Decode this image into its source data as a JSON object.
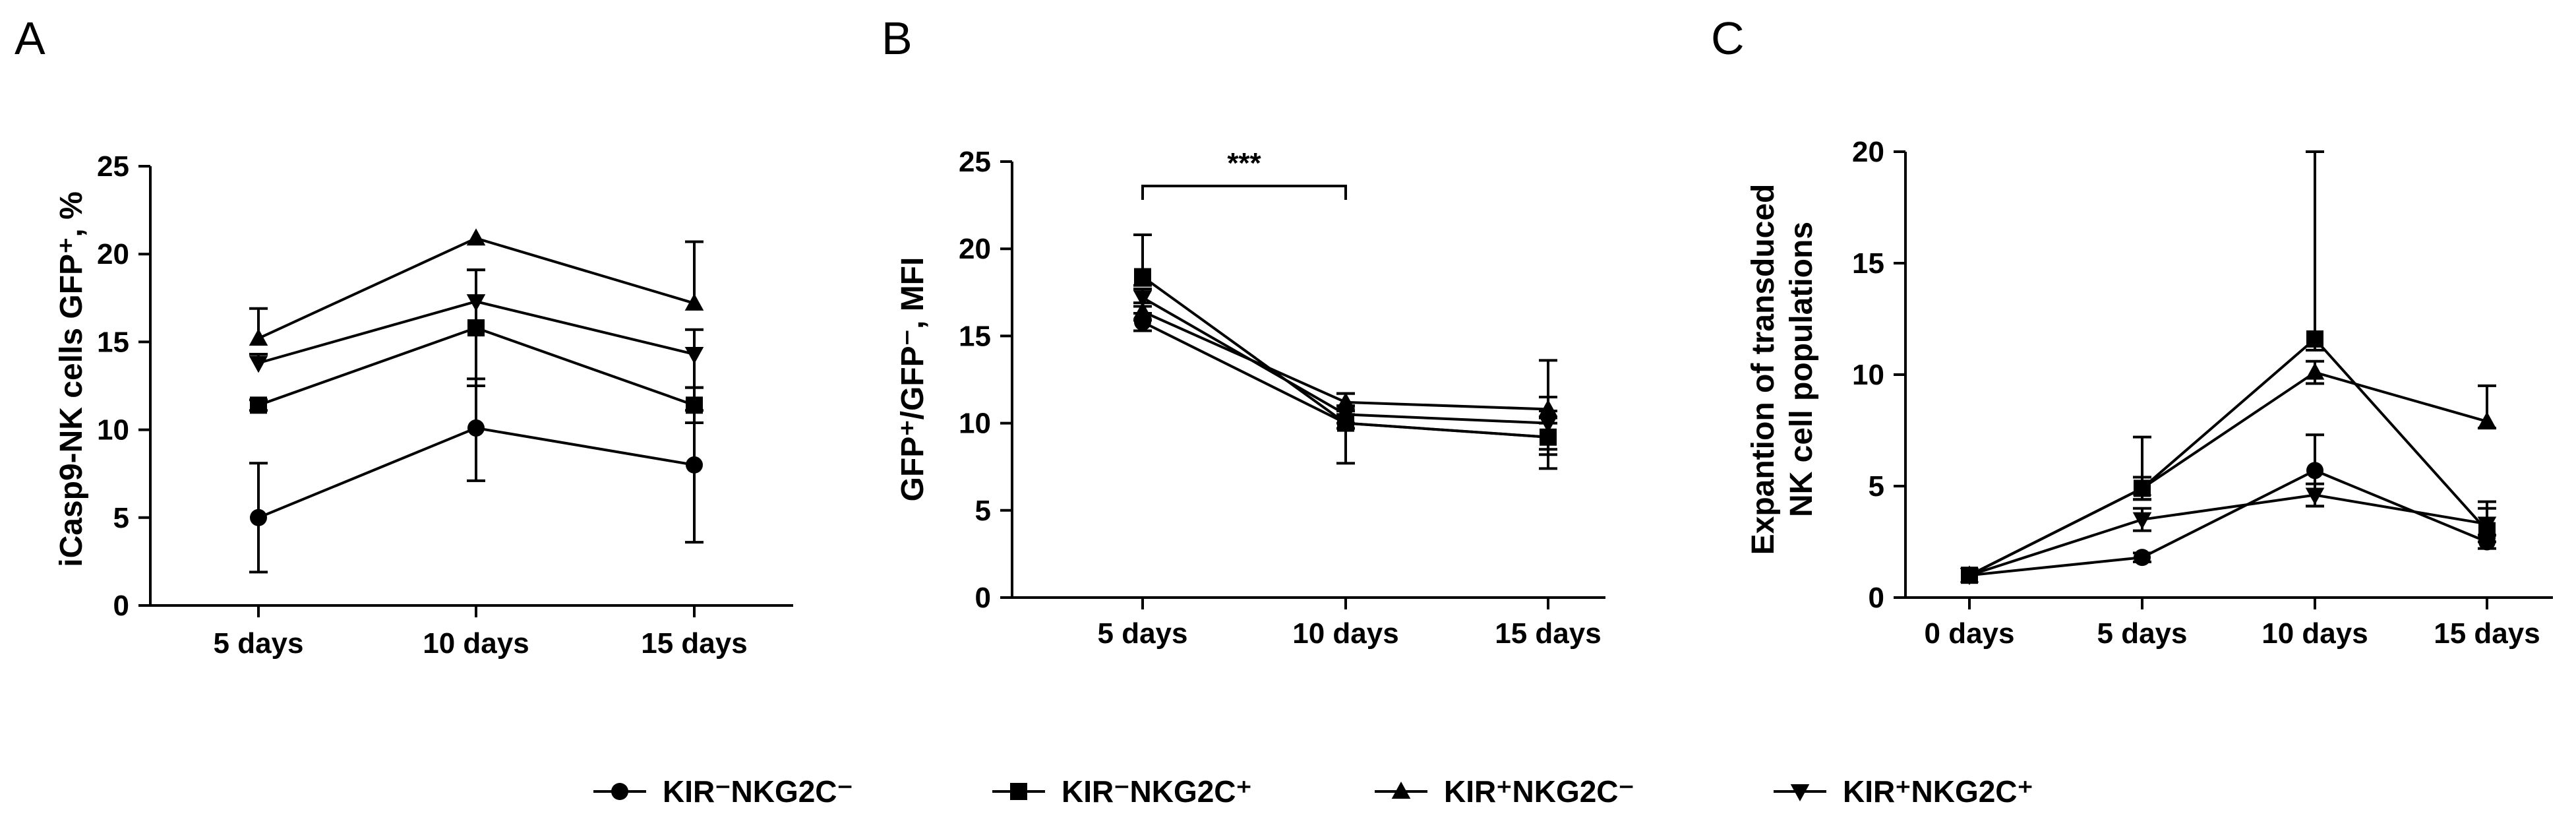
{
  "chart_data": [
    {
      "panel": "A",
      "type": "line",
      "ylabel": "iCasp9-NK cells GFP⁺, %",
      "xlabel": "",
      "categories": [
        "5 days",
        "10 days",
        "15 days"
      ],
      "ylim": [
        0,
        25
      ],
      "yticks": [
        0,
        5,
        10,
        15,
        20,
        25
      ],
      "series": [
        {
          "name": "KIR⁻NKG2C⁻",
          "marker": "circle",
          "values": [
            5.0,
            10.1,
            8.0
          ],
          "err_up": [
            3.1,
            2.8,
            4.4
          ],
          "err_down": [
            3.1,
            3.0,
            4.4
          ]
        },
        {
          "name": "KIR⁻NKG2C⁺",
          "marker": "square",
          "values": [
            11.4,
            15.8,
            11.4
          ],
          "err_up": [
            0.3,
            3.3,
            1.0
          ],
          "err_down": [
            0.3,
            3.3,
            1.0
          ]
        },
        {
          "name": "KIR⁺NKG2C⁻",
          "marker": "triangle-up",
          "values": [
            15.2,
            20.9,
            17.2
          ],
          "err_up": [
            1.7,
            0.0,
            3.5
          ],
          "err_down": [
            0.0,
            0.0,
            0.0
          ]
        },
        {
          "name": "KIR⁺NKG2C⁺",
          "marker": "triangle-down",
          "values": [
            13.8,
            17.3,
            14.3
          ],
          "err_up": [
            0.5,
            1.8,
            1.4
          ],
          "err_down": [
            0.0,
            0.0,
            3.2
          ]
        }
      ]
    },
    {
      "panel": "B",
      "type": "line",
      "ylabel": "GFP⁺/GFP⁻, MFI",
      "xlabel": "",
      "categories": [
        "5 days",
        "10 days",
        "15 days"
      ],
      "ylim": [
        0,
        25
      ],
      "yticks": [
        0,
        5,
        10,
        15,
        20,
        25
      ],
      "annotation": "***",
      "series": [
        {
          "name": "KIR⁻NKG2C⁻",
          "marker": "circle",
          "values": [
            15.8,
            10.0,
            9.2
          ],
          "err_up": [
            0.5,
            0.5,
            0.8
          ],
          "err_down": [
            0.5,
            2.3,
            1.8
          ]
        },
        {
          "name": "KIR⁻NKG2C⁺",
          "marker": "square",
          "values": [
            18.4,
            10.0,
            9.2
          ],
          "err_up": [
            2.4,
            1.7,
            1.5
          ],
          "err_down": [
            0.5,
            0.3,
            1.0
          ]
        },
        {
          "name": "KIR⁺NKG2C⁻",
          "marker": "triangle-up",
          "values": [
            16.4,
            11.2,
            10.8
          ],
          "err_up": [
            0.5,
            0.5,
            2.8
          ],
          "err_down": [
            0.5,
            0.5,
            0.5
          ]
        },
        {
          "name": "KIR⁺NKG2C⁺",
          "marker": "triangle-down",
          "values": [
            17.2,
            10.5,
            10.0
          ],
          "err_up": [
            0.5,
            0.5,
            1.5
          ],
          "err_down": [
            0.5,
            0.5,
            1.5
          ]
        }
      ]
    },
    {
      "panel": "C",
      "type": "line",
      "ylabel": "Expantion of transduced NK cell populations",
      "xlabel": "",
      "categories": [
        "0 days",
        "5 days",
        "10 days",
        "15 days"
      ],
      "ylim": [
        0,
        20
      ],
      "yticks": [
        0,
        5,
        10,
        15,
        20
      ],
      "series": [
        {
          "name": "KIR⁻NKG2C⁻",
          "marker": "circle",
          "values": [
            1.0,
            1.8,
            5.7,
            2.5
          ],
          "err_up": [
            0,
            0.2,
            1.6,
            0.3
          ],
          "err_down": [
            0,
            0.2,
            1.6,
            0.3
          ]
        },
        {
          "name": "KIR⁻NKG2C⁺",
          "marker": "square",
          "values": [
            1.0,
            4.9,
            11.6,
            3.0
          ],
          "err_up": [
            0,
            2.3,
            8.4,
            1.3
          ],
          "err_down": [
            0,
            0.5,
            0.5,
            0.5
          ]
        },
        {
          "name": "KIR⁺NKG2C⁻",
          "marker": "triangle-up",
          "values": [
            1.0,
            4.9,
            10.1,
            7.9
          ],
          "err_up": [
            0,
            0.5,
            0.5,
            1.6
          ],
          "err_down": [
            0,
            0.5,
            0.5,
            0.3
          ]
        },
        {
          "name": "KIR⁺NKG2C⁺",
          "marker": "triangle-down",
          "values": [
            1.0,
            3.5,
            4.6,
            3.3
          ],
          "err_up": [
            0,
            0.5,
            0.5,
            0.7
          ],
          "err_down": [
            0,
            0.5,
            0.5,
            0.5
          ]
        }
      ]
    }
  ],
  "legend": [
    {
      "label": "KIR⁻NKG2C⁻",
      "marker": "circle"
    },
    {
      "label": "KIR⁻NKG2C⁺",
      "marker": "square"
    },
    {
      "label": "KIR⁺NKG2C⁻",
      "marker": "triangle-up"
    },
    {
      "label": "KIR⁺NKG2C⁺",
      "marker": "triangle-down"
    }
  ],
  "colors": {
    "line": "#000000",
    "background": "#ffffff"
  }
}
